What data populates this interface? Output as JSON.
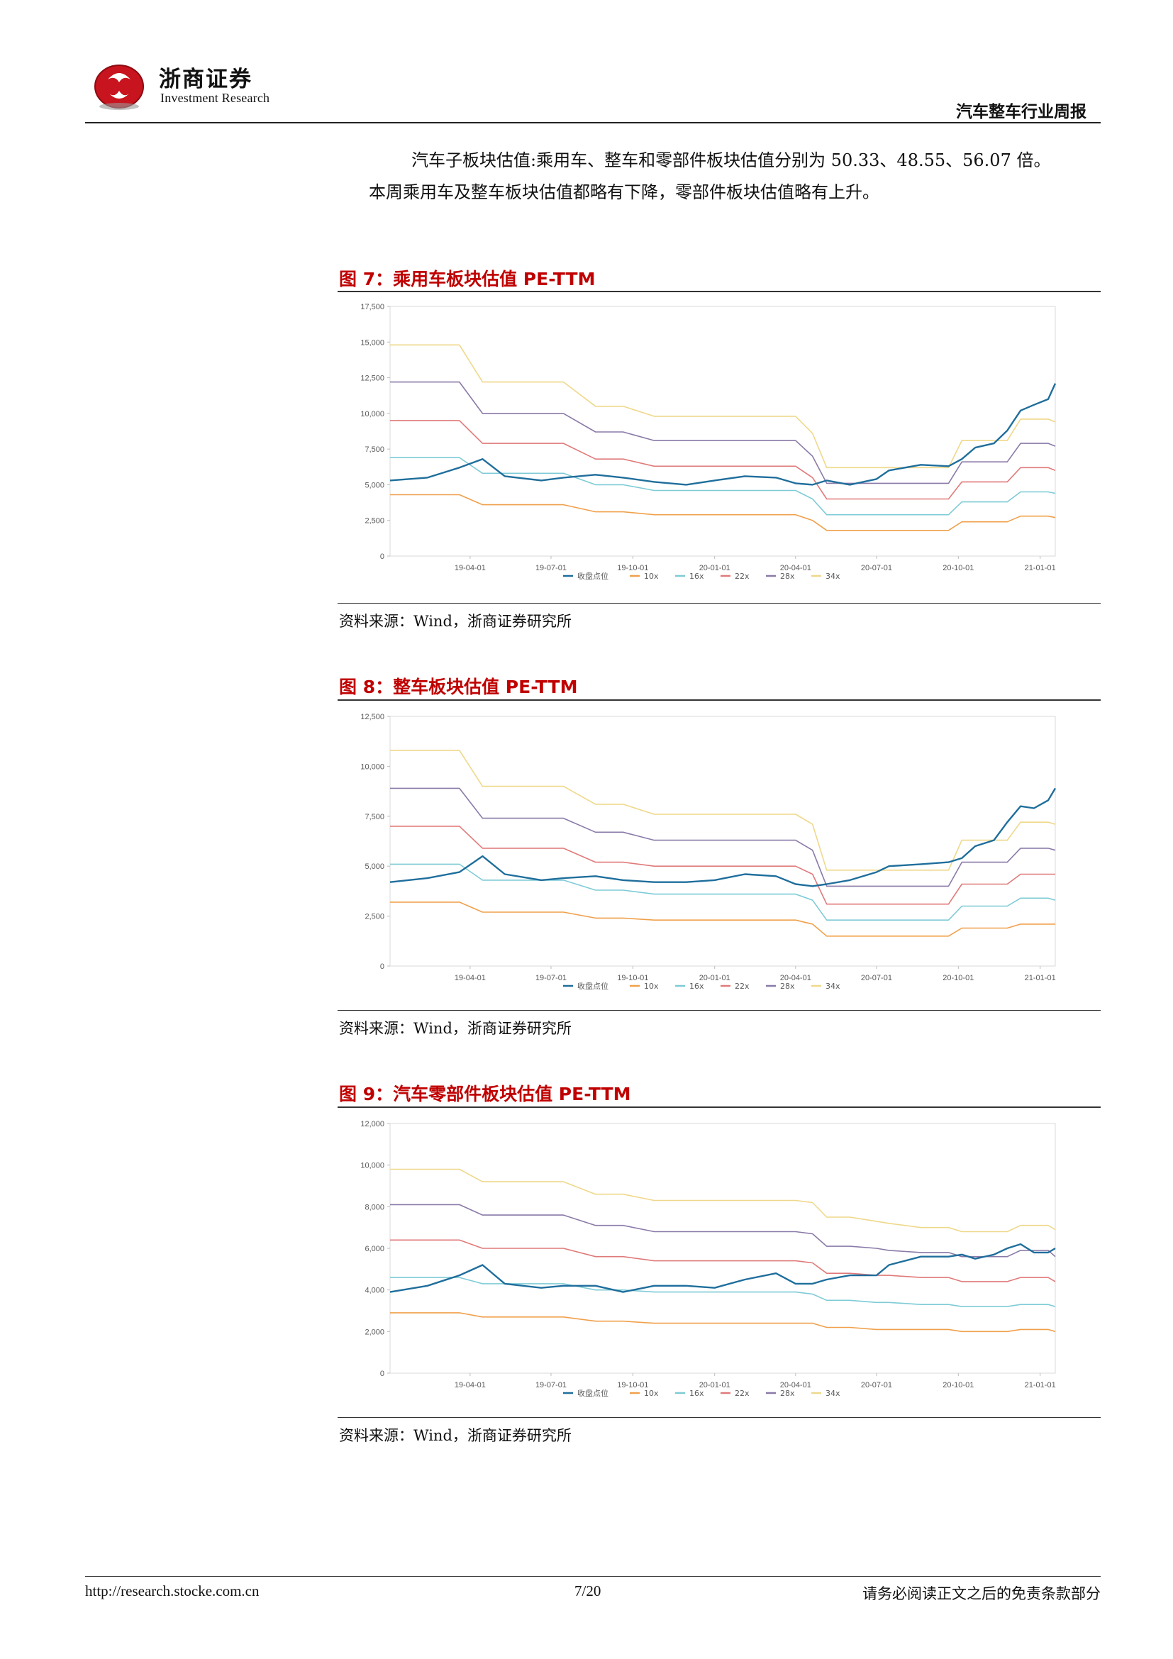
{
  "header": {
    "logo_cn": "浙商证券",
    "logo_en": "Investment Research",
    "report_title": "汽车整车行业周报"
  },
  "body_text": {
    "line1": "汽车子板块估值:乘用车、整车和零部件板块估值分别为 50.33、48.55、56.07 倍。",
    "line2": "本周乘用车及整车板块估值都略有下降，零部件板块估值略有上升。"
  },
  "figures": [
    {
      "title": "图 7：乘用车板块估值 PE-TTM",
      "source": "资料来源：Wind，浙商证券研究所"
    },
    {
      "title": "图 8：整车板块估值 PE-TTM",
      "source": "资料来源：Wind，浙商证券研究所"
    },
    {
      "title": "图 9：汽车零部件板块估值 PE-TTM",
      "source": "资料来源：Wind，浙商证券研究所"
    }
  ],
  "footer": {
    "url": "http://research.stocke.com.cn",
    "page": "7/20",
    "note": "请务必阅读正文之后的免责条款部分"
  },
  "chart_data": [
    {
      "type": "line",
      "title": "图 7：乘用车板块估值 PE-TTM",
      "x": [
        "2019-01-01",
        "2019-02-12",
        "2019-03-20",
        "2019-04-15",
        "2019-05-10",
        "2019-06-20",
        "2019-07-15",
        "2019-08-20",
        "2019-09-20",
        "2019-10-25",
        "2019-11-30",
        "2020-01-01",
        "2020-02-04",
        "2020-03-10",
        "2020-04-01",
        "2020-04-20",
        "2020-05-06",
        "2020-06-01",
        "2020-07-01",
        "2020-07-15",
        "2020-08-20",
        "2020-09-20",
        "2020-10-05",
        "2020-10-20",
        "2020-11-10",
        "2020-11-25",
        "2020-12-10",
        "2020-12-25",
        "2021-01-10",
        "2021-01-18"
      ],
      "x_ticks": [
        "19-04-01",
        "19-07-01",
        "19-10-01",
        "20-01-01",
        "20-04-01",
        "20-07-01",
        "20-10-01",
        "21-01-01"
      ],
      "ylim": [
        0,
        17500
      ],
      "y_ticks": [
        "0",
        "2,500",
        "5,000",
        "7,500",
        "10,000",
        "12,500",
        "15,000",
        "17,500"
      ],
      "series": [
        {
          "name": "收盘点位",
          "color": "#1f6e9c",
          "values": [
            5300,
            5500,
            6200,
            6800,
            5600,
            5300,
            5500,
            5700,
            5500,
            5200,
            5000,
            5300,
            5600,
            5500,
            5100,
            5000,
            5300,
            5000,
            5400,
            6000,
            6400,
            6300,
            6800,
            7600,
            7900,
            8800,
            10200,
            10600,
            11000,
            12100
          ]
        },
        {
          "name": "10x",
          "color": "#f0a04b",
          "values": [
            4300,
            4300,
            4300,
            3600,
            3600,
            3600,
            3600,
            3100,
            3100,
            2900,
            2900,
            2900,
            2900,
            2900,
            2900,
            2500,
            1800,
            1800,
            1800,
            1800,
            1800,
            1800,
            2400,
            2400,
            2400,
            2400,
            2800,
            2800,
            2800,
            2700
          ]
        },
        {
          "name": "16x",
          "color": "#7ecbd6",
          "values": [
            6900,
            6900,
            6900,
            5800,
            5800,
            5800,
            5800,
            5000,
            5000,
            4600,
            4600,
            4600,
            4600,
            4600,
            4600,
            4000,
            2900,
            2900,
            2900,
            2900,
            2900,
            2900,
            3800,
            3800,
            3800,
            3800,
            4500,
            4500,
            4500,
            4400
          ]
        },
        {
          "name": "22x",
          "color": "#e07a7a",
          "values": [
            9500,
            9500,
            9500,
            7900,
            7900,
            7900,
            7900,
            6800,
            6800,
            6300,
            6300,
            6300,
            6300,
            6300,
            6300,
            5500,
            4000,
            4000,
            4000,
            4000,
            4000,
            4000,
            5200,
            5200,
            5200,
            5200,
            6200,
            6200,
            6200,
            6000
          ]
        },
        {
          "name": "28x",
          "color": "#8a7aa8",
          "values": [
            12200,
            12200,
            12200,
            10000,
            10000,
            10000,
            10000,
            8700,
            8700,
            8100,
            8100,
            8100,
            8100,
            8100,
            8100,
            7000,
            5100,
            5100,
            5100,
            5100,
            5100,
            5100,
            6600,
            6600,
            6600,
            6600,
            7900,
            7900,
            7900,
            7700
          ]
        },
        {
          "name": "34x",
          "color": "#efd88a",
          "values": [
            14800,
            14800,
            14800,
            12200,
            12200,
            12200,
            12200,
            10500,
            10500,
            9800,
            9800,
            9800,
            9800,
            9800,
            9800,
            8600,
            6200,
            6200,
            6200,
            6200,
            6200,
            6200,
            8100,
            8100,
            8100,
            8100,
            9600,
            9600,
            9600,
            9400
          ]
        }
      ]
    },
    {
      "type": "line",
      "title": "图 8：整车板块估值 PE-TTM",
      "x": [
        "2019-01-01",
        "2019-02-12",
        "2019-03-20",
        "2019-04-15",
        "2019-05-10",
        "2019-06-20",
        "2019-07-15",
        "2019-08-20",
        "2019-09-20",
        "2019-10-25",
        "2019-11-30",
        "2020-01-01",
        "2020-02-04",
        "2020-03-10",
        "2020-04-01",
        "2020-04-20",
        "2020-05-06",
        "2020-06-01",
        "2020-07-01",
        "2020-07-15",
        "2020-08-20",
        "2020-09-20",
        "2020-10-05",
        "2020-10-20",
        "2020-11-10",
        "2020-11-25",
        "2020-12-10",
        "2020-12-25",
        "2021-01-10",
        "2021-01-18"
      ],
      "x_ticks": [
        "19-04-01",
        "19-07-01",
        "19-10-01",
        "20-01-01",
        "20-04-01",
        "20-07-01",
        "20-10-01",
        "21-01-01"
      ],
      "ylim": [
        0,
        12500
      ],
      "y_ticks": [
        "0",
        "2,500",
        "5,000",
        "7,500",
        "10,000",
        "12,500"
      ],
      "series": [
        {
          "name": "收盘点位",
          "color": "#1f6e9c",
          "values": [
            4200,
            4400,
            4700,
            5500,
            4600,
            4300,
            4400,
            4500,
            4300,
            4200,
            4200,
            4300,
            4600,
            4500,
            4100,
            4000,
            4100,
            4300,
            4700,
            5000,
            5100,
            5200,
            5400,
            6000,
            6300,
            7200,
            8000,
            7900,
            8300,
            8900
          ]
        },
        {
          "name": "10x",
          "color": "#f0a04b",
          "values": [
            3200,
            3200,
            3200,
            2700,
            2700,
            2700,
            2700,
            2400,
            2400,
            2300,
            2300,
            2300,
            2300,
            2300,
            2300,
            2100,
            1500,
            1500,
            1500,
            1500,
            1500,
            1500,
            1900,
            1900,
            1900,
            1900,
            2100,
            2100,
            2100,
            2100
          ]
        },
        {
          "name": "16x",
          "color": "#7ecbd6",
          "values": [
            5100,
            5100,
            5100,
            4300,
            4300,
            4300,
            4300,
            3800,
            3800,
            3600,
            3600,
            3600,
            3600,
            3600,
            3600,
            3300,
            2300,
            2300,
            2300,
            2300,
            2300,
            2300,
            3000,
            3000,
            3000,
            3000,
            3400,
            3400,
            3400,
            3300
          ]
        },
        {
          "name": "22x",
          "color": "#e07a7a",
          "values": [
            7000,
            7000,
            7000,
            5900,
            5900,
            5900,
            5900,
            5200,
            5200,
            5000,
            5000,
            5000,
            5000,
            5000,
            5000,
            4600,
            3100,
            3100,
            3100,
            3100,
            3100,
            3100,
            4100,
            4100,
            4100,
            4100,
            4600,
            4600,
            4600,
            4600
          ]
        },
        {
          "name": "28x",
          "color": "#8a7aa8",
          "values": [
            8900,
            8900,
            8900,
            7400,
            7400,
            7400,
            7400,
            6700,
            6700,
            6300,
            6300,
            6300,
            6300,
            6300,
            6300,
            5800,
            4000,
            4000,
            4000,
            4000,
            4000,
            4000,
            5200,
            5200,
            5200,
            5200,
            5900,
            5900,
            5900,
            5800
          ]
        },
        {
          "name": "34x",
          "color": "#efd88a",
          "values": [
            10800,
            10800,
            10800,
            9000,
            9000,
            9000,
            9000,
            8100,
            8100,
            7600,
            7600,
            7600,
            7600,
            7600,
            7600,
            7100,
            4800,
            4800,
            4800,
            4800,
            4800,
            4800,
            6300,
            6300,
            6300,
            6300,
            7200,
            7200,
            7200,
            7100
          ]
        }
      ]
    },
    {
      "type": "line",
      "title": "图 9：汽车零部件板块估值 PE-TTM",
      "x": [
        "2019-01-01",
        "2019-02-12",
        "2019-03-20",
        "2019-04-15",
        "2019-05-10",
        "2019-06-20",
        "2019-07-15",
        "2019-08-20",
        "2019-09-20",
        "2019-10-25",
        "2019-11-30",
        "2020-01-01",
        "2020-02-04",
        "2020-03-10",
        "2020-04-01",
        "2020-04-20",
        "2020-05-06",
        "2020-06-01",
        "2020-07-01",
        "2020-07-15",
        "2020-08-20",
        "2020-09-20",
        "2020-10-05",
        "2020-10-20",
        "2020-11-10",
        "2020-11-25",
        "2020-12-10",
        "2020-12-25",
        "2021-01-10",
        "2021-01-18"
      ],
      "x_ticks": [
        "19-04-01",
        "19-07-01",
        "19-10-01",
        "20-01-01",
        "20-04-01",
        "20-07-01",
        "20-10-01",
        "21-01-01"
      ],
      "ylim": [
        0,
        12000
      ],
      "y_ticks": [
        "0",
        "2,000",
        "4,000",
        "6,000",
        "8,000",
        "10,000",
        "12,000"
      ],
      "series": [
        {
          "name": "收盘点位",
          "color": "#1f6e9c",
          "values": [
            3900,
            4200,
            4700,
            5200,
            4300,
            4100,
            4200,
            4200,
            3900,
            4200,
            4200,
            4100,
            4500,
            4800,
            4300,
            4300,
            4500,
            4700,
            4700,
            5200,
            5600,
            5600,
            5700,
            5500,
            5700,
            6000,
            6200,
            5800,
            5800,
            6000
          ]
        },
        {
          "name": "10x",
          "color": "#f0a04b",
          "values": [
            2900,
            2900,
            2900,
            2700,
            2700,
            2700,
            2700,
            2500,
            2500,
            2400,
            2400,
            2400,
            2400,
            2400,
            2400,
            2400,
            2200,
            2200,
            2100,
            2100,
            2100,
            2100,
            2000,
            2000,
            2000,
            2000,
            2100,
            2100,
            2100,
            2000
          ]
        },
        {
          "name": "16x",
          "color": "#7ecbd6",
          "values": [
            4600,
            4600,
            4600,
            4300,
            4300,
            4300,
            4300,
            4000,
            4000,
            3900,
            3900,
            3900,
            3900,
            3900,
            3900,
            3800,
            3500,
            3500,
            3400,
            3400,
            3300,
            3300,
            3200,
            3200,
            3200,
            3200,
            3300,
            3300,
            3300,
            3200
          ]
        },
        {
          "name": "22x",
          "color": "#e07a7a",
          "values": [
            6400,
            6400,
            6400,
            6000,
            6000,
            6000,
            6000,
            5600,
            5600,
            5400,
            5400,
            5400,
            5400,
            5400,
            5400,
            5300,
            4800,
            4800,
            4700,
            4700,
            4600,
            4600,
            4400,
            4400,
            4400,
            4400,
            4600,
            4600,
            4600,
            4400
          ]
        },
        {
          "name": "28x",
          "color": "#8a7aa8",
          "values": [
            8100,
            8100,
            8100,
            7600,
            7600,
            7600,
            7600,
            7100,
            7100,
            6800,
            6800,
            6800,
            6800,
            6800,
            6800,
            6700,
            6100,
            6100,
            6000,
            5900,
            5800,
            5800,
            5600,
            5600,
            5600,
            5600,
            5900,
            5900,
            5900,
            5600
          ]
        },
        {
          "name": "34x",
          "color": "#efd88a",
          "values": [
            9800,
            9800,
            9800,
            9200,
            9200,
            9200,
            9200,
            8600,
            8600,
            8300,
            8300,
            8300,
            8300,
            8300,
            8300,
            8200,
            7500,
            7500,
            7300,
            7200,
            7000,
            7000,
            6800,
            6800,
            6800,
            6800,
            7100,
            7100,
            7100,
            6900
          ]
        }
      ]
    }
  ]
}
